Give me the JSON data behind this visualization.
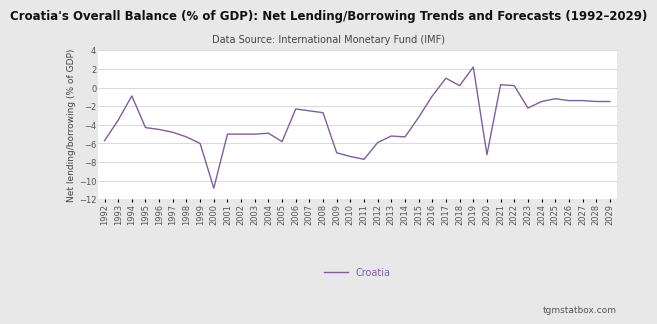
{
  "title": "Croatia's Overall Balance (% of GDP): Net Lending/Borrowing Trends and Forecasts (1992–2029)",
  "subtitle": "Data Source: International Monetary Fund (IMF)",
  "ylabel": "Net lending/borrowing (% of GDP)",
  "legend_label": "Croatia",
  "footer": "tgmstatbox.com",
  "line_color": "#7b5ea7",
  "background_color": "#e8e8e8",
  "plot_bg_color": "#ffffff",
  "years": [
    1992,
    1993,
    1994,
    1995,
    1996,
    1997,
    1998,
    1999,
    2000,
    2001,
    2002,
    2003,
    2004,
    2005,
    2006,
    2007,
    2008,
    2009,
    2010,
    2011,
    2012,
    2013,
    2014,
    2015,
    2016,
    2017,
    2018,
    2019,
    2020,
    2021,
    2022,
    2023,
    2024,
    2025,
    2026,
    2027,
    2028,
    2029
  ],
  "values": [
    -5.7,
    -3.5,
    -0.9,
    -4.3,
    -4.5,
    -4.8,
    -5.3,
    -6.0,
    -10.8,
    -5.0,
    -5.0,
    -5.0,
    -4.9,
    -5.8,
    -2.3,
    -2.5,
    -2.7,
    -7.0,
    -7.4,
    -7.7,
    -5.9,
    -5.2,
    -5.3,
    -3.2,
    -0.9,
    1.0,
    0.2,
    2.2,
    -7.2,
    0.3,
    0.2,
    -2.2,
    -1.5,
    -1.2,
    -1.4,
    -1.4,
    -1.5,
    -1.5
  ],
  "ylim": [
    -12,
    4
  ],
  "yticks": [
    -12,
    -10,
    -8,
    -6,
    -4,
    -2,
    0,
    2,
    4
  ],
  "title_fontsize": 8.5,
  "subtitle_fontsize": 7,
  "axis_label_fontsize": 6.5,
  "tick_fontsize": 6,
  "legend_fontsize": 7,
  "footer_fontsize": 6.5,
  "grid_color": "#cccccc",
  "title_color": "#111111",
  "axis_label_color": "#444444",
  "tick_color": "#555555"
}
